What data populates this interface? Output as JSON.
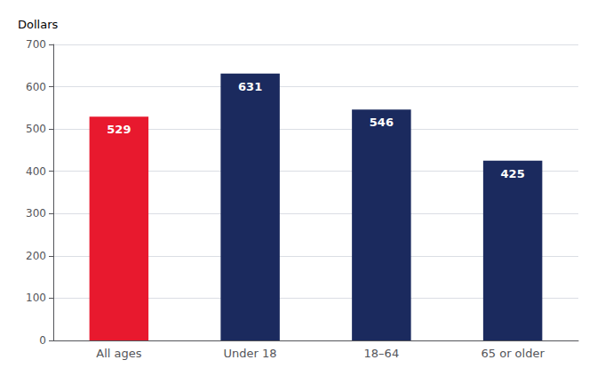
{
  "chart_data": {
    "type": "bar",
    "ylabel": "Dollars",
    "categories": [
      "All ages",
      "Under 18",
      "18–64",
      "65 or older"
    ],
    "values": [
      529,
      631,
      546,
      425
    ],
    "colors": [
      "#e8192e",
      "#1b2a5e",
      "#1b2a5e",
      "#1b2a5e"
    ],
    "ylim": [
      0,
      700
    ],
    "yticks": [
      0,
      100,
      200,
      300,
      400,
      500,
      600,
      700
    ],
    "grid": true,
    "data_labels": true
  }
}
